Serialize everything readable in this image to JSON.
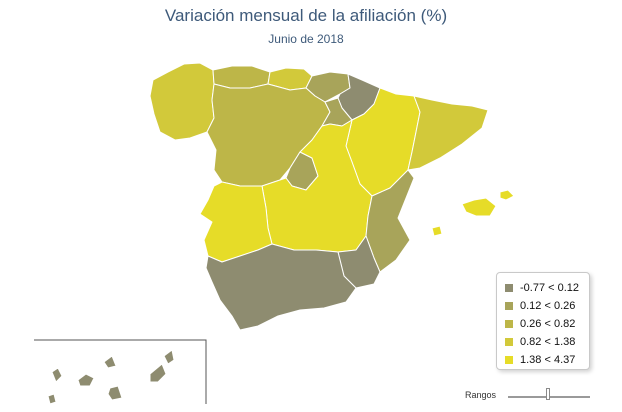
{
  "header": {
    "title": "Variación mensual de la afiliación (%)",
    "subtitle": "Junio de 2018"
  },
  "legend": {
    "items": [
      {
        "label": "-0.77 < 0.12",
        "color": "#8e8c70"
      },
      {
        "label": "0.12 < 0.26",
        "color": "#a8a45a"
      },
      {
        "label": "0.26 < 0.82",
        "color": "#bdb648"
      },
      {
        "label": "0.82 < 1.38",
        "color": "#d2c93a"
      },
      {
        "label": "1.38 < 4.37",
        "color": "#e6dc28"
      }
    ]
  },
  "slider": {
    "label": "Rangos"
  },
  "regions": [
    {
      "name": "galicia",
      "class": 3
    },
    {
      "name": "asturias",
      "class": 2
    },
    {
      "name": "cantabria",
      "class": 3
    },
    {
      "name": "pais-vasco",
      "class": 1
    },
    {
      "name": "navarra",
      "class": 0
    },
    {
      "name": "aragon",
      "class": 4
    },
    {
      "name": "cataluna",
      "class": 3
    },
    {
      "name": "castilla-y-leon",
      "class": 2
    },
    {
      "name": "la-rioja",
      "class": 1
    },
    {
      "name": "madrid",
      "class": 1
    },
    {
      "name": "castilla-la-mancha",
      "class": 4
    },
    {
      "name": "extremadura",
      "class": 4
    },
    {
      "name": "comunidad-valenciana",
      "class": 1
    },
    {
      "name": "murcia",
      "class": 0
    },
    {
      "name": "andalucia",
      "class": 0
    },
    {
      "name": "baleares",
      "class": 4
    },
    {
      "name": "canarias",
      "class": 0
    }
  ]
}
